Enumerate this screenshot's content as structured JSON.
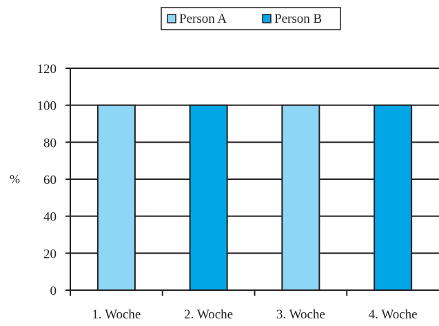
{
  "chart_data": {
    "type": "bar",
    "title": "",
    "xlabel": "",
    "ylabel": "%",
    "ylim": [
      0,
      120
    ],
    "yticks": [
      0,
      20,
      40,
      60,
      80,
      100,
      120
    ],
    "categories": [
      "1. Woche",
      "2. Woche",
      "3. Woche",
      "4. Woche"
    ],
    "series": [
      {
        "name": "Person A",
        "color": "#8dd6f5",
        "values": [
          100,
          null,
          100,
          null
        ]
      },
      {
        "name": "Person B",
        "color": "#00a6e6",
        "values": [
          null,
          100,
          null,
          100
        ]
      }
    ],
    "grid": true,
    "legend_position": "top-center"
  }
}
